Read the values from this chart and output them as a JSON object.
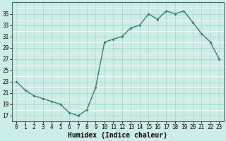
{
  "x": [
    0,
    1,
    2,
    3,
    4,
    5,
    6,
    7,
    8,
    9,
    10,
    11,
    12,
    13,
    14,
    15,
    16,
    17,
    18,
    19,
    20,
    21,
    22,
    23
  ],
  "y": [
    23,
    21.5,
    20.5,
    20,
    19.5,
    19,
    17.5,
    17,
    18,
    22,
    30,
    30.5,
    31,
    32.5,
    33,
    35,
    34,
    35.5,
    35,
    35.5,
    33.5,
    31.5,
    30,
    27
  ],
  "line_color": "#2e7d6e",
  "marker": "D",
  "marker_size": 1.5,
  "bg_color": "#cceee8",
  "grid_major_color": "#b0d8d0",
  "grid_minor_color": "#ffffff",
  "xlabel": "Humidex (Indice chaleur)",
  "xlim": [
    -0.5,
    23.5
  ],
  "ylim": [
    16,
    37
  ],
  "yticks": [
    17,
    19,
    21,
    23,
    25,
    27,
    29,
    31,
    33,
    35
  ],
  "xticks": [
    0,
    1,
    2,
    3,
    4,
    5,
    6,
    7,
    8,
    9,
    10,
    11,
    12,
    13,
    14,
    15,
    16,
    17,
    18,
    19,
    20,
    21,
    22,
    23
  ],
  "tick_fontsize": 5.5,
  "xlabel_fontsize": 7,
  "linewidth": 1.0
}
